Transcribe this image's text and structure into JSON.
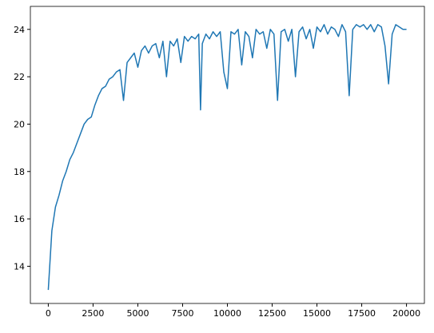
{
  "chart_data": {
    "type": "line",
    "x": [
      0,
      200,
      400,
      600,
      800,
      1000,
      1200,
      1400,
      1600,
      1800,
      2000,
      2200,
      2400,
      2600,
      2800,
      3000,
      3200,
      3400,
      3600,
      3800,
      4000,
      4200,
      4400,
      4600,
      4800,
      5000,
      5200,
      5400,
      5600,
      5800,
      6000,
      6200,
      6400,
      6600,
      6800,
      7000,
      7200,
      7400,
      7600,
      7800,
      8000,
      8200,
      8400,
      8500,
      8600,
      8800,
      9000,
      9200,
      9400,
      9600,
      9800,
      10000,
      10200,
      10400,
      10600,
      10800,
      11000,
      11200,
      11400,
      11600,
      11800,
      12000,
      12200,
      12400,
      12600,
      12800,
      13000,
      13200,
      13400,
      13600,
      13800,
      14000,
      14200,
      14400,
      14600,
      14800,
      15000,
      15200,
      15400,
      15600,
      15800,
      16000,
      16200,
      16400,
      16600,
      16800,
      17000,
      17200,
      17400,
      17600,
      17800,
      18000,
      18200,
      18400,
      18600,
      18800,
      19000,
      19200,
      19400,
      19600,
      19800,
      20000
    ],
    "series": [
      {
        "color": "#1f77b4",
        "values": [
          13.0,
          15.5,
          16.5,
          17.0,
          17.6,
          18.0,
          18.5,
          18.8,
          19.2,
          19.6,
          20.0,
          20.2,
          20.3,
          20.8,
          21.2,
          21.5,
          21.6,
          21.9,
          22.0,
          22.2,
          22.3,
          21.0,
          22.6,
          22.8,
          23.0,
          22.4,
          23.1,
          23.3,
          23.0,
          23.3,
          23.4,
          22.8,
          23.5,
          22.0,
          23.5,
          23.3,
          23.6,
          22.6,
          23.7,
          23.5,
          23.7,
          23.6,
          23.8,
          20.6,
          23.4,
          23.8,
          23.6,
          23.9,
          23.7,
          23.9,
          22.2,
          21.5,
          23.9,
          23.8,
          24.0,
          22.5,
          23.9,
          23.7,
          22.8,
          24.0,
          23.8,
          23.9,
          23.2,
          24.0,
          23.8,
          21.0,
          23.9,
          24.0,
          23.5,
          24.0,
          22.0,
          23.9,
          24.1,
          23.6,
          24.0,
          23.2,
          24.1,
          23.9,
          24.2,
          23.8,
          24.1,
          24.0,
          23.7,
          24.2,
          23.9,
          21.2,
          24.0,
          24.2,
          24.1,
          24.2,
          24.0,
          24.2,
          23.9,
          24.2,
          24.1,
          23.3,
          21.7,
          23.8,
          24.2,
          24.1,
          24.0,
          24.0
        ]
      }
    ],
    "xlim": [
      -1000,
      21000
    ],
    "ylim": [
      12.43,
      24.97
    ],
    "xticks": [
      0,
      2500,
      5000,
      7500,
      10000,
      12500,
      15000,
      17500,
      20000
    ],
    "yticks": [
      14,
      16,
      18,
      20,
      22,
      24
    ]
  }
}
